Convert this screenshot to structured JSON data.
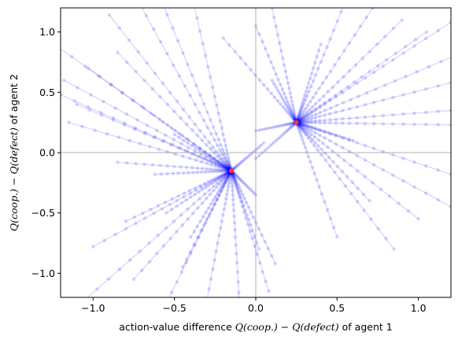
{
  "chart_data": {
    "type": "scatter",
    "title": "",
    "xlabel_prefix": "action-value difference ",
    "xlabel_math": "Q(coop.) − Q(defect)",
    "xlabel_suffix": " of agent 1",
    "ylabel_math": "Q(coop.) − Q(defect)",
    "ylabel_suffix": " of agent 2",
    "xlim": [
      -1.2,
      1.2
    ],
    "ylim": [
      -1.2,
      1.2
    ],
    "xticks": [
      -1.0,
      -0.5,
      0.0,
      0.5,
      1.0
    ],
    "xtick_labels": [
      "−1.0",
      "−0.5",
      "0.0",
      "0.5",
      "1.0"
    ],
    "yticks": [
      -1.0,
      -0.5,
      0.0,
      0.5,
      1.0
    ],
    "ytick_labels": [
      "−1.0",
      "−0.5",
      "0.0",
      "0.5",
      "1.0"
    ],
    "reference_lines": {
      "x": 0.0,
      "y": 0.0,
      "color": "#999999"
    },
    "trajectory_color": "#0000ff",
    "fixed_point_color": "#ff3333",
    "fixed_points": [
      {
        "x": 0.25,
        "y": 0.25
      },
      {
        "x": -0.15,
        "y": -0.15
      }
    ],
    "trajectories": [
      {
        "start": [
          -0.9,
          1.14
        ],
        "end": [
          -0.15,
          -0.15
        ]
      },
      {
        "start": [
          -0.72,
          1.25
        ],
        "end": [
          -0.15,
          -0.15
        ]
      },
      {
        "start": [
          -0.58,
          1.26
        ],
        "end": [
          -0.15,
          -0.15
        ]
      },
      {
        "start": [
          -0.38,
          1.23
        ],
        "end": [
          -0.15,
          -0.15
        ]
      },
      {
        "start": [
          -0.85,
          0.83
        ],
        "end": [
          -0.15,
          -0.15
        ]
      },
      {
        "start": [
          -1.03,
          0.7
        ],
        "end": [
          -0.15,
          -0.15
        ]
      },
      {
        "start": [
          -1.18,
          0.6
        ],
        "end": [
          -0.15,
          -0.15
        ]
      },
      {
        "start": [
          -1.2,
          0.48
        ],
        "end": [
          -0.15,
          -0.15
        ]
      },
      {
        "start": [
          -1.15,
          0.25
        ],
        "end": [
          -0.15,
          -0.15
        ]
      },
      {
        "start": [
          -1.1,
          0.4
        ],
        "end": [
          -0.15,
          -0.15
        ]
      },
      {
        "start": [
          -1.22,
          0.88
        ],
        "end": [
          -0.15,
          -0.15
        ]
      },
      {
        "start": [
          -0.85,
          -0.08
        ],
        "end": [
          -0.15,
          -0.15
        ]
      },
      {
        "start": [
          -0.62,
          -0.18
        ],
        "end": [
          -0.15,
          -0.15
        ]
      },
      {
        "start": [
          -0.8,
          -0.57
        ],
        "end": [
          -0.15,
          -0.15
        ]
      },
      {
        "start": [
          -1.0,
          -0.78
        ],
        "end": [
          -0.15,
          -0.15
        ]
      },
      {
        "start": [
          -1.05,
          -1.22
        ],
        "end": [
          -0.15,
          -0.15
        ]
      },
      {
        "start": [
          -0.75,
          -1.05
        ],
        "end": [
          -0.15,
          -0.15
        ]
      },
      {
        "start": [
          -0.55,
          -1.25
        ],
        "end": [
          -0.15,
          -0.15
        ]
      },
      {
        "start": [
          -0.45,
          -0.95
        ],
        "end": [
          -0.15,
          -0.15
        ]
      },
      {
        "start": [
          -0.3,
          -1.22
        ],
        "end": [
          -0.15,
          -0.15
        ]
      },
      {
        "start": [
          -0.1,
          -1.25
        ],
        "end": [
          -0.15,
          -0.15
        ]
      },
      {
        "start": [
          0.08,
          -1.15
        ],
        "end": [
          -0.15,
          -0.15
        ]
      },
      {
        "start": [
          0.02,
          -0.8
        ],
        "end": [
          -0.15,
          -0.15
        ]
      },
      {
        "start": [
          0.12,
          -0.92
        ],
        "end": [
          -0.15,
          -0.15
        ]
      },
      {
        "start": [
          -0.55,
          -0.5
        ],
        "end": [
          -0.15,
          -0.15
        ]
      },
      {
        "start": [
          0.0,
          -0.35
        ],
        "end": [
          -0.15,
          -0.15
        ]
      },
      {
        "start": [
          0.05,
          0.08
        ],
        "end": [
          -0.15,
          -0.15
        ]
      },
      {
        "start": [
          -0.5,
          0.15
        ],
        "end": [
          -0.15,
          -0.15
        ]
      },
      {
        "start": [
          -0.4,
          -0.7
        ],
        "end": [
          -0.15,
          -0.15
        ]
      },
      {
        "start": [
          0.1,
          1.2
        ],
        "end": [
          0.25,
          0.25
        ]
      },
      {
        "start": [
          0.0,
          1.05
        ],
        "end": [
          0.25,
          0.25
        ]
      },
      {
        "start": [
          0.55,
          1.25
        ],
        "end": [
          0.25,
          0.25
        ]
      },
      {
        "start": [
          0.72,
          1.2
        ],
        "end": [
          0.25,
          0.25
        ]
      },
      {
        "start": [
          0.9,
          1.1
        ],
        "end": [
          0.25,
          0.25
        ]
      },
      {
        "start": [
          1.05,
          1.0
        ],
        "end": [
          0.25,
          0.25
        ]
      },
      {
        "start": [
          1.2,
          1.08
        ],
        "end": [
          0.25,
          0.25
        ]
      },
      {
        "start": [
          1.22,
          0.8
        ],
        "end": [
          0.25,
          0.25
        ]
      },
      {
        "start": [
          1.2,
          0.58
        ],
        "end": [
          0.25,
          0.25
        ]
      },
      {
        "start": [
          1.2,
          0.35
        ],
        "end": [
          0.25,
          0.25
        ]
      },
      {
        "start": [
          1.2,
          0.23
        ],
        "end": [
          0.25,
          0.25
        ]
      },
      {
        "start": [
          1.2,
          -0.18
        ],
        "end": [
          0.25,
          0.25
        ]
      },
      {
        "start": [
          1.2,
          -0.45
        ],
        "end": [
          0.25,
          0.25
        ]
      },
      {
        "start": [
          1.0,
          -0.55
        ],
        "end": [
          0.25,
          0.25
        ]
      },
      {
        "start": [
          0.85,
          -0.8
        ],
        "end": [
          0.25,
          0.25
        ]
      },
      {
        "start": [
          0.5,
          -0.7
        ],
        "end": [
          0.25,
          0.25
        ]
      },
      {
        "start": [
          0.7,
          -0.4
        ],
        "end": [
          0.25,
          0.25
        ]
      },
      {
        "start": [
          0.1,
          0.6
        ],
        "end": [
          0.25,
          0.25
        ]
      },
      {
        "start": [
          0.0,
          0.18
        ],
        "end": [
          0.25,
          0.25
        ]
      },
      {
        "start": [
          0.6,
          0.1
        ],
        "end": [
          0.25,
          0.25
        ]
      },
      {
        "start": [
          0.4,
          0.9
        ],
        "end": [
          0.25,
          0.25
        ]
      },
      {
        "start": [
          -0.2,
          0.95
        ],
        "end": [
          0.25,
          0.25
        ]
      },
      {
        "start": [
          0.0,
          -0.05
        ],
        "end": [
          0.25,
          0.25
        ]
      }
    ]
  }
}
